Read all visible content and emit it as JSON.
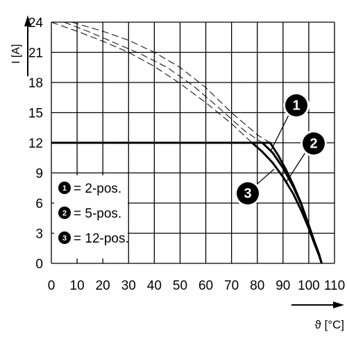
{
  "chart_data": {
    "type": "line",
    "xlabel": "ϑ [°C]",
    "ylabel": "I [A]",
    "xlim": [
      0,
      110
    ],
    "ylim": [
      0,
      24
    ],
    "x_ticks": [
      0,
      10,
      20,
      30,
      40,
      50,
      60,
      70,
      80,
      90,
      100,
      110
    ],
    "y_ticks": [
      0,
      3,
      6,
      9,
      12,
      15,
      18,
      21,
      24
    ],
    "grid": true,
    "legend_position": "bottom-left",
    "series": [
      {
        "name": "2-pos.",
        "marker": "1",
        "style": "solid",
        "x": [
          0,
          85,
          88,
          91,
          94,
          97,
          100,
          102,
          104,
          105
        ],
        "y": [
          12,
          12,
          10.8,
          9.4,
          7.8,
          6.0,
          3.8,
          2.3,
          0.9,
          0
        ]
      },
      {
        "name": "5-pos.",
        "marker": "2",
        "style": "solid",
        "x": [
          0,
          82,
          86,
          90,
          94,
          97,
          100,
          102,
          104,
          105
        ],
        "y": [
          12,
          12,
          11.0,
          9.5,
          7.6,
          5.9,
          3.8,
          2.3,
          0.9,
          0
        ]
      },
      {
        "name": "12-pos.",
        "marker": "3",
        "style": "solid",
        "x": [
          0,
          78,
          82,
          86,
          90,
          94,
          97,
          100,
          102,
          104,
          105
        ],
        "y": [
          12,
          12,
          11.1,
          10.0,
          8.6,
          6.9,
          5.3,
          3.5,
          2.1,
          0.8,
          0
        ]
      },
      {
        "style": "dashed",
        "x": [
          8,
          20,
          30,
          40,
          50,
          60,
          70,
          80,
          85
        ],
        "y": [
          24,
          23.1,
          22.2,
          21.0,
          19.5,
          17.5,
          15.0,
          12.8,
          12
        ]
      },
      {
        "style": "dashed",
        "x": [
          5,
          15,
          25,
          35,
          45,
          55,
          65,
          75,
          82
        ],
        "y": [
          24,
          23.0,
          21.9,
          20.8,
          19.5,
          17.7,
          15.5,
          13.2,
          12
        ]
      },
      {
        "style": "dashed",
        "x": [
          0,
          10,
          20,
          30,
          40,
          50,
          60,
          70,
          78
        ],
        "y": [
          24,
          23.1,
          22.1,
          21.0,
          19.6,
          17.9,
          16.0,
          13.9,
          12
        ]
      }
    ],
    "legend": [
      {
        "marker": "1",
        "label": "= 2-pos."
      },
      {
        "marker": "2",
        "label": "= 5-pos."
      },
      {
        "marker": "3",
        "label": "= 12-pos."
      }
    ],
    "annotations": [
      {
        "marker": "1",
        "for_series": 0
      },
      {
        "marker": "2",
        "for_series": 1
      },
      {
        "marker": "3",
        "for_series": 2
      }
    ]
  }
}
